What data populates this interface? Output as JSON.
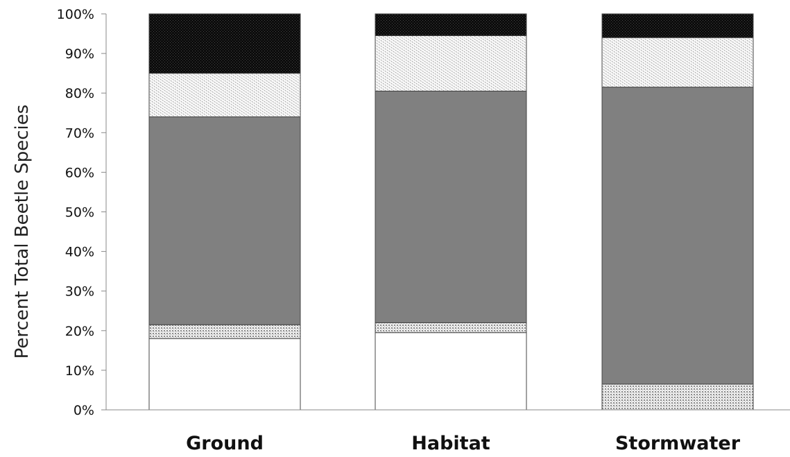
{
  "chart_data": {
    "type": "bar",
    "stacked": true,
    "title": "",
    "xlabel": "",
    "ylabel": "Percent Total Beetle Species",
    "ylim": [
      0,
      100
    ],
    "ytick_labels": [
      "0%",
      "10%",
      "20%",
      "30%",
      "40%",
      "50%",
      "60%",
      "70%",
      "80%",
      "90%",
      "100%"
    ],
    "categories": [
      "Ground",
      "Habitat",
      "Stormwater"
    ],
    "grid": false,
    "legend": "none",
    "series": [
      {
        "fill": "white",
        "color": "#ffffff",
        "values": [
          18,
          19.5,
          0
        ]
      },
      {
        "fill": "dotted-light",
        "color": "#c8c8c8",
        "values": [
          3.5,
          2.5,
          6.5
        ]
      },
      {
        "fill": "solid-gray",
        "color": "#808080",
        "values": [
          52.5,
          58.5,
          75
        ]
      },
      {
        "fill": "speckled-light",
        "color": "#e2e2e2",
        "values": [
          11,
          14,
          12.5
        ]
      },
      {
        "fill": "speckled-dark",
        "color": "#111111",
        "values": [
          15,
          5.5,
          6
        ]
      }
    ]
  }
}
